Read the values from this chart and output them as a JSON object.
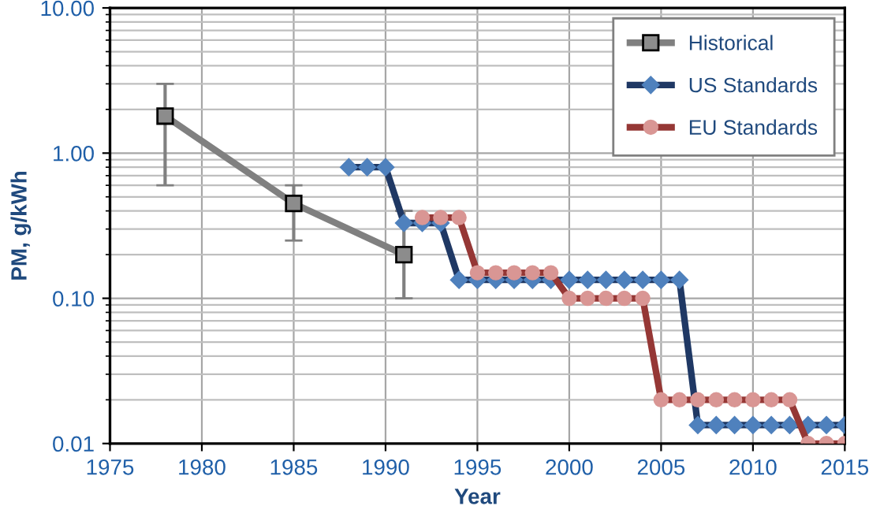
{
  "chart_data": {
    "type": "line",
    "xlabel": "Year",
    "ylabel": "PM, g/kWh",
    "log": "y",
    "grid": true,
    "legend": "top right",
    "xlim": [
      1975,
      2015
    ],
    "xticks": [
      1975,
      1980,
      1985,
      1990,
      1995,
      2000,
      2005,
      2010,
      2015
    ],
    "ylim": [
      0.01,
      10
    ],
    "yticks": [
      {
        "value": 0.01,
        "label": "0.01"
      },
      {
        "value": 0.1,
        "label": "0.10"
      },
      {
        "value": 1,
        "label": "1.00"
      },
      {
        "value": 10,
        "label": "10.00"
      }
    ],
    "series": [
      {
        "name": "Historical",
        "color": "#808080",
        "marker": "square",
        "x": [
          1978,
          1985,
          1991
        ],
        "values": [
          1.8,
          0.45,
          0.2
        ],
        "errors": [
          [
            0.6,
            3.0
          ],
          [
            0.25,
            0.6
          ],
          [
            0.1,
            0.4
          ]
        ]
      },
      {
        "name": "US Standards",
        "color": "#1f3864",
        "marker": "diamond",
        "x": [
          1988,
          1989,
          1990,
          1991,
          1992,
          1993,
          1994,
          1995,
          1996,
          1997,
          1998,
          1999,
          2000,
          2001,
          2002,
          2003,
          2004,
          2005,
          2006,
          2007,
          2008,
          2009,
          2010,
          2011,
          2012,
          2013,
          2014,
          2015
        ],
        "values": [
          0.8,
          0.8,
          0.8,
          0.33,
          0.33,
          0.33,
          0.134,
          0.134,
          0.134,
          0.134,
          0.134,
          0.134,
          0.134,
          0.134,
          0.134,
          0.134,
          0.134,
          0.134,
          0.134,
          0.0134,
          0.0134,
          0.0134,
          0.0134,
          0.0134,
          0.0134,
          0.0134,
          0.0134,
          0.0134
        ]
      },
      {
        "name": "EU Standards",
        "color": "#953735",
        "marker": "circle",
        "x": [
          1992,
          1993,
          1994,
          1995,
          1996,
          1997,
          1998,
          1999,
          2000,
          2001,
          2002,
          2003,
          2004,
          2005,
          2006,
          2007,
          2008,
          2009,
          2010,
          2011,
          2012,
          2013,
          2014,
          2015
        ],
        "values": [
          0.36,
          0.36,
          0.36,
          0.15,
          0.15,
          0.15,
          0.15,
          0.15,
          0.1,
          0.1,
          0.1,
          0.1,
          0.1,
          0.02,
          0.02,
          0.02,
          0.02,
          0.02,
          0.02,
          0.02,
          0.02,
          0.01,
          0.01,
          0.01
        ]
      }
    ]
  }
}
